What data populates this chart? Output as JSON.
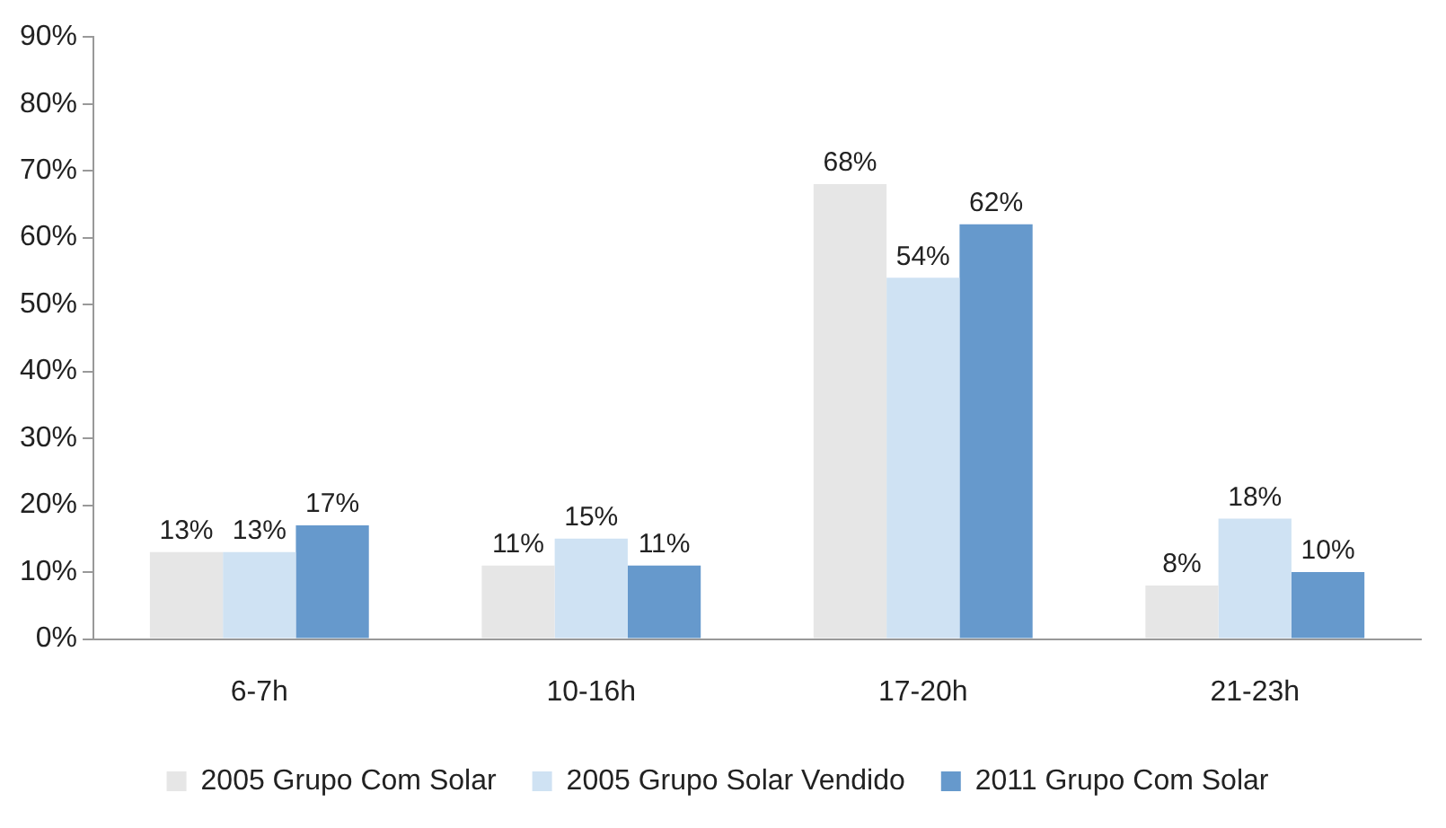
{
  "chart_data": {
    "type": "bar",
    "categories": [
      "6-7h",
      "10-16h",
      "17-20h",
      "21-23h"
    ],
    "series": [
      {
        "name": "2005 Grupo Com Solar",
        "color": "#e6e6e6",
        "values": [
          13,
          11,
          68,
          8
        ],
        "value_labels": [
          "13%",
          "11%",
          "68%",
          "8%"
        ]
      },
      {
        "name": "2005 Grupo Solar Vendido",
        "color": "#cfe2f3",
        "values": [
          13,
          15,
          54,
          18
        ],
        "value_labels": [
          "13%",
          "15%",
          "54%",
          "18%"
        ]
      },
      {
        "name": "2011 Grupo Com Solar",
        "color": "#6699cc",
        "values": [
          17,
          11,
          62,
          10
        ],
        "value_labels": [
          "17%",
          "11%",
          "62%",
          "10%"
        ]
      }
    ],
    "ylim": [
      0,
      90
    ],
    "yticks": [
      {
        "value": 0,
        "label": "0%"
      },
      {
        "value": 10,
        "label": "10%"
      },
      {
        "value": 20,
        "label": "20%"
      },
      {
        "value": 30,
        "label": "30%"
      },
      {
        "value": 40,
        "label": "40%"
      },
      {
        "value": 50,
        "label": "50%"
      },
      {
        "value": 60,
        "label": "60%"
      },
      {
        "value": 70,
        "label": "70%"
      },
      {
        "value": 80,
        "label": "80%"
      },
      {
        "value": 90,
        "label": "90%"
      }
    ],
    "grid": false,
    "legend": "bottom"
  }
}
